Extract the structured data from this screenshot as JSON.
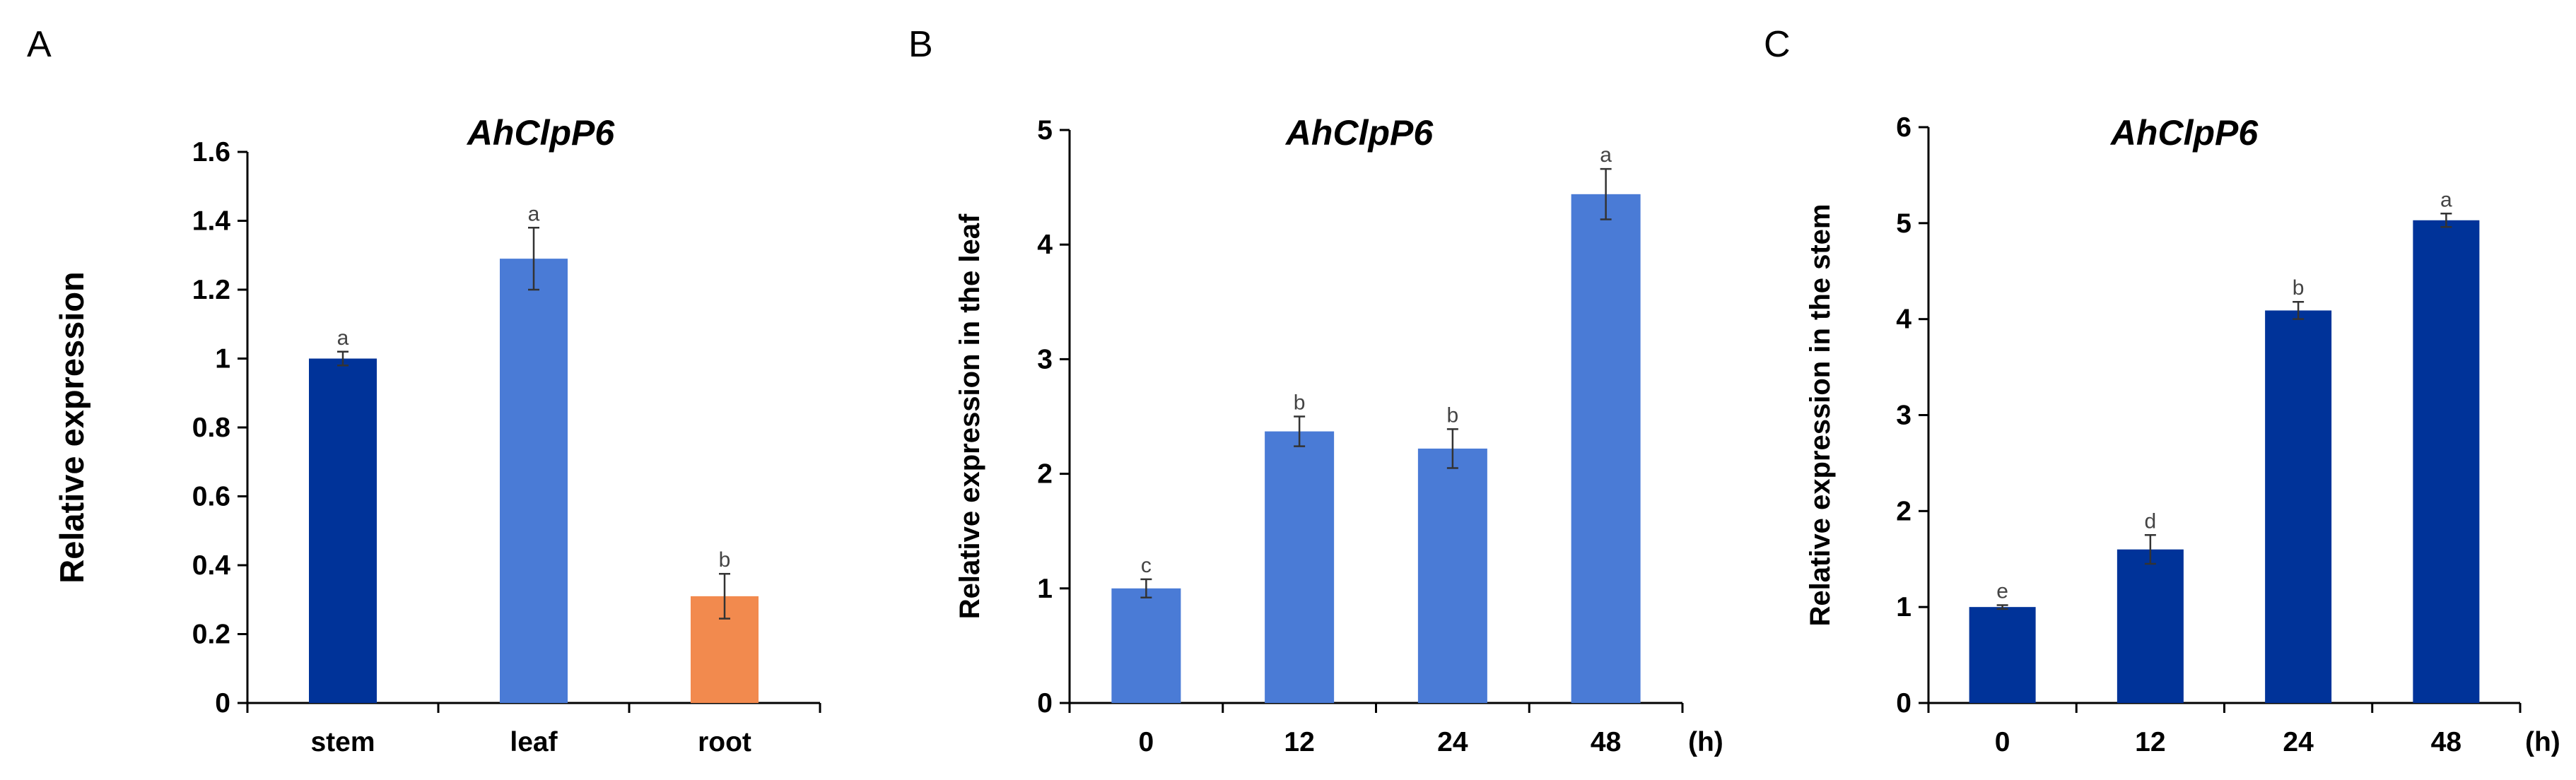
{
  "chart_data": [
    {
      "panel": "A",
      "type": "bar",
      "title": "AhClpP6",
      "ylabel": "Relative expression",
      "xlabel": "",
      "unit": "",
      "categories": [
        "stem",
        "leaf",
        "root"
      ],
      "values": [
        1.0,
        1.29,
        0.31
      ],
      "errors": [
        0.02,
        0.09,
        0.065
      ],
      "significance": [
        "a",
        "a",
        "b"
      ],
      "colors": [
        "#003399",
        "#4A7BD6",
        "#F28A4E"
      ],
      "ylim": [
        0,
        1.6
      ],
      "yticks": [
        "0",
        "0.2",
        "0.4",
        "0.6",
        "0.8",
        "1",
        "1.2",
        "1.4",
        "1.6"
      ],
      "grid": false
    },
    {
      "panel": "B",
      "type": "bar",
      "title": "AhClpP6",
      "ylabel": "Relative expression in the leaf",
      "xlabel": "",
      "unit": "(h)",
      "categories": [
        "0",
        "12",
        "24",
        "48"
      ],
      "values": [
        1.0,
        2.37,
        2.22,
        4.44
      ],
      "errors": [
        0.08,
        0.13,
        0.17,
        0.22
      ],
      "significance": [
        "c",
        "b",
        "b",
        "a"
      ],
      "colors": [
        "#4A7BD6",
        "#4A7BD6",
        "#4A7BD6",
        "#4A7BD6"
      ],
      "ylim": [
        0,
        5
      ],
      "yticks": [
        "0",
        "1",
        "2",
        "3",
        "4",
        "5"
      ],
      "grid": false
    },
    {
      "panel": "C",
      "type": "bar",
      "title": "AhClpP6",
      "ylabel": "Relative expression in the stem",
      "xlabel": "",
      "unit": "(h)",
      "categories": [
        "0",
        "12",
        "24",
        "48"
      ],
      "values": [
        1.0,
        1.6,
        4.09,
        5.03
      ],
      "errors": [
        0.02,
        0.15,
        0.09,
        0.07
      ],
      "significance": [
        "e",
        "d",
        "b",
        "a"
      ],
      "colors": [
        "#003399",
        "#003399",
        "#003399",
        "#003399"
      ],
      "ylim": [
        0,
        6
      ],
      "yticks": [
        "0",
        "1",
        "2",
        "3",
        "4",
        "5",
        "6"
      ],
      "grid": false
    }
  ]
}
